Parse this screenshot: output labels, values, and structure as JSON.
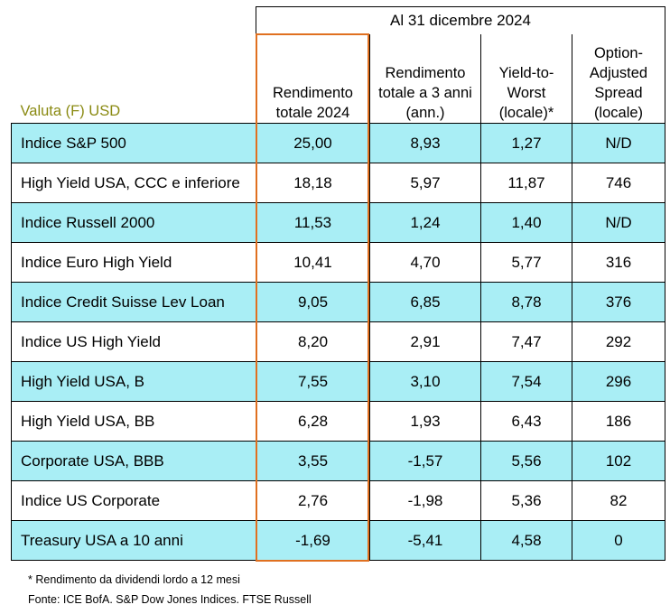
{
  "header": {
    "date_span": "Al 31 dicembre 2024",
    "currency_label": "Valuta (F) USD",
    "columns": [
      "Rendimento totale 2024",
      "Rendimento totale a 3 anni (ann.)",
      "Yield-to-Worst (locale)*",
      "Option-Adjusted Spread (locale)"
    ]
  },
  "rows": [
    {
      "name": "Indice S&P 500",
      "ret2024": "25,00",
      "ret3y": "8,93",
      "ytw": "1,27",
      "oas": "N/D"
    },
    {
      "name": "High Yield USA, CCC e inferiore",
      "ret2024": "18,18",
      "ret3y": "5,97",
      "ytw": "11,87",
      "oas": "746"
    },
    {
      "name": "Indice Russell 2000",
      "ret2024": "11,53",
      "ret3y": "1,24",
      "ytw": "1,40",
      "oas": "N/D"
    },
    {
      "name": "Indice Euro High Yield",
      "ret2024": "10,41",
      "ret3y": "4,70",
      "ytw": "5,77",
      "oas": "316"
    },
    {
      "name": "Indice Credit Suisse Lev Loan",
      "ret2024": "9,05",
      "ret3y": "6,85",
      "ytw": "8,78",
      "oas": "376"
    },
    {
      "name": "Indice US High Yield",
      "ret2024": "8,20",
      "ret3y": "2,91",
      "ytw": "7,47",
      "oas": "292"
    },
    {
      "name": "High Yield USA, B",
      "ret2024": "7,55",
      "ret3y": "3,10",
      "ytw": "7,54",
      "oas": "296"
    },
    {
      "name": "High Yield USA, BB",
      "ret2024": "6,28",
      "ret3y": "1,93",
      "ytw": "6,43",
      "oas": "186"
    },
    {
      "name": "Corporate USA, BBB",
      "ret2024": "3,55",
      "ret3y": "-1,57",
      "ytw": "5,56",
      "oas": "102"
    },
    {
      "name": "Indice US Corporate",
      "ret2024": "2,76",
      "ret3y": "-1,98",
      "ytw": "5,36",
      "oas": "82"
    },
    {
      "name": "Treasury USA a 10 anni",
      "ret2024": "-1,69",
      "ret3y": "-5,41",
      "ytw": "4,58",
      "oas": "0"
    }
  ],
  "footnote": "* Rendimento da dividendi lordo a 12 mesi",
  "source": "Fonte: ICE BofA. S&P Dow Jones Indices. FTSE Russell",
  "colors": {
    "row_shade": "#a9eef5",
    "highlight_border": "#e07020",
    "currency_label": "#8a8a12"
  }
}
